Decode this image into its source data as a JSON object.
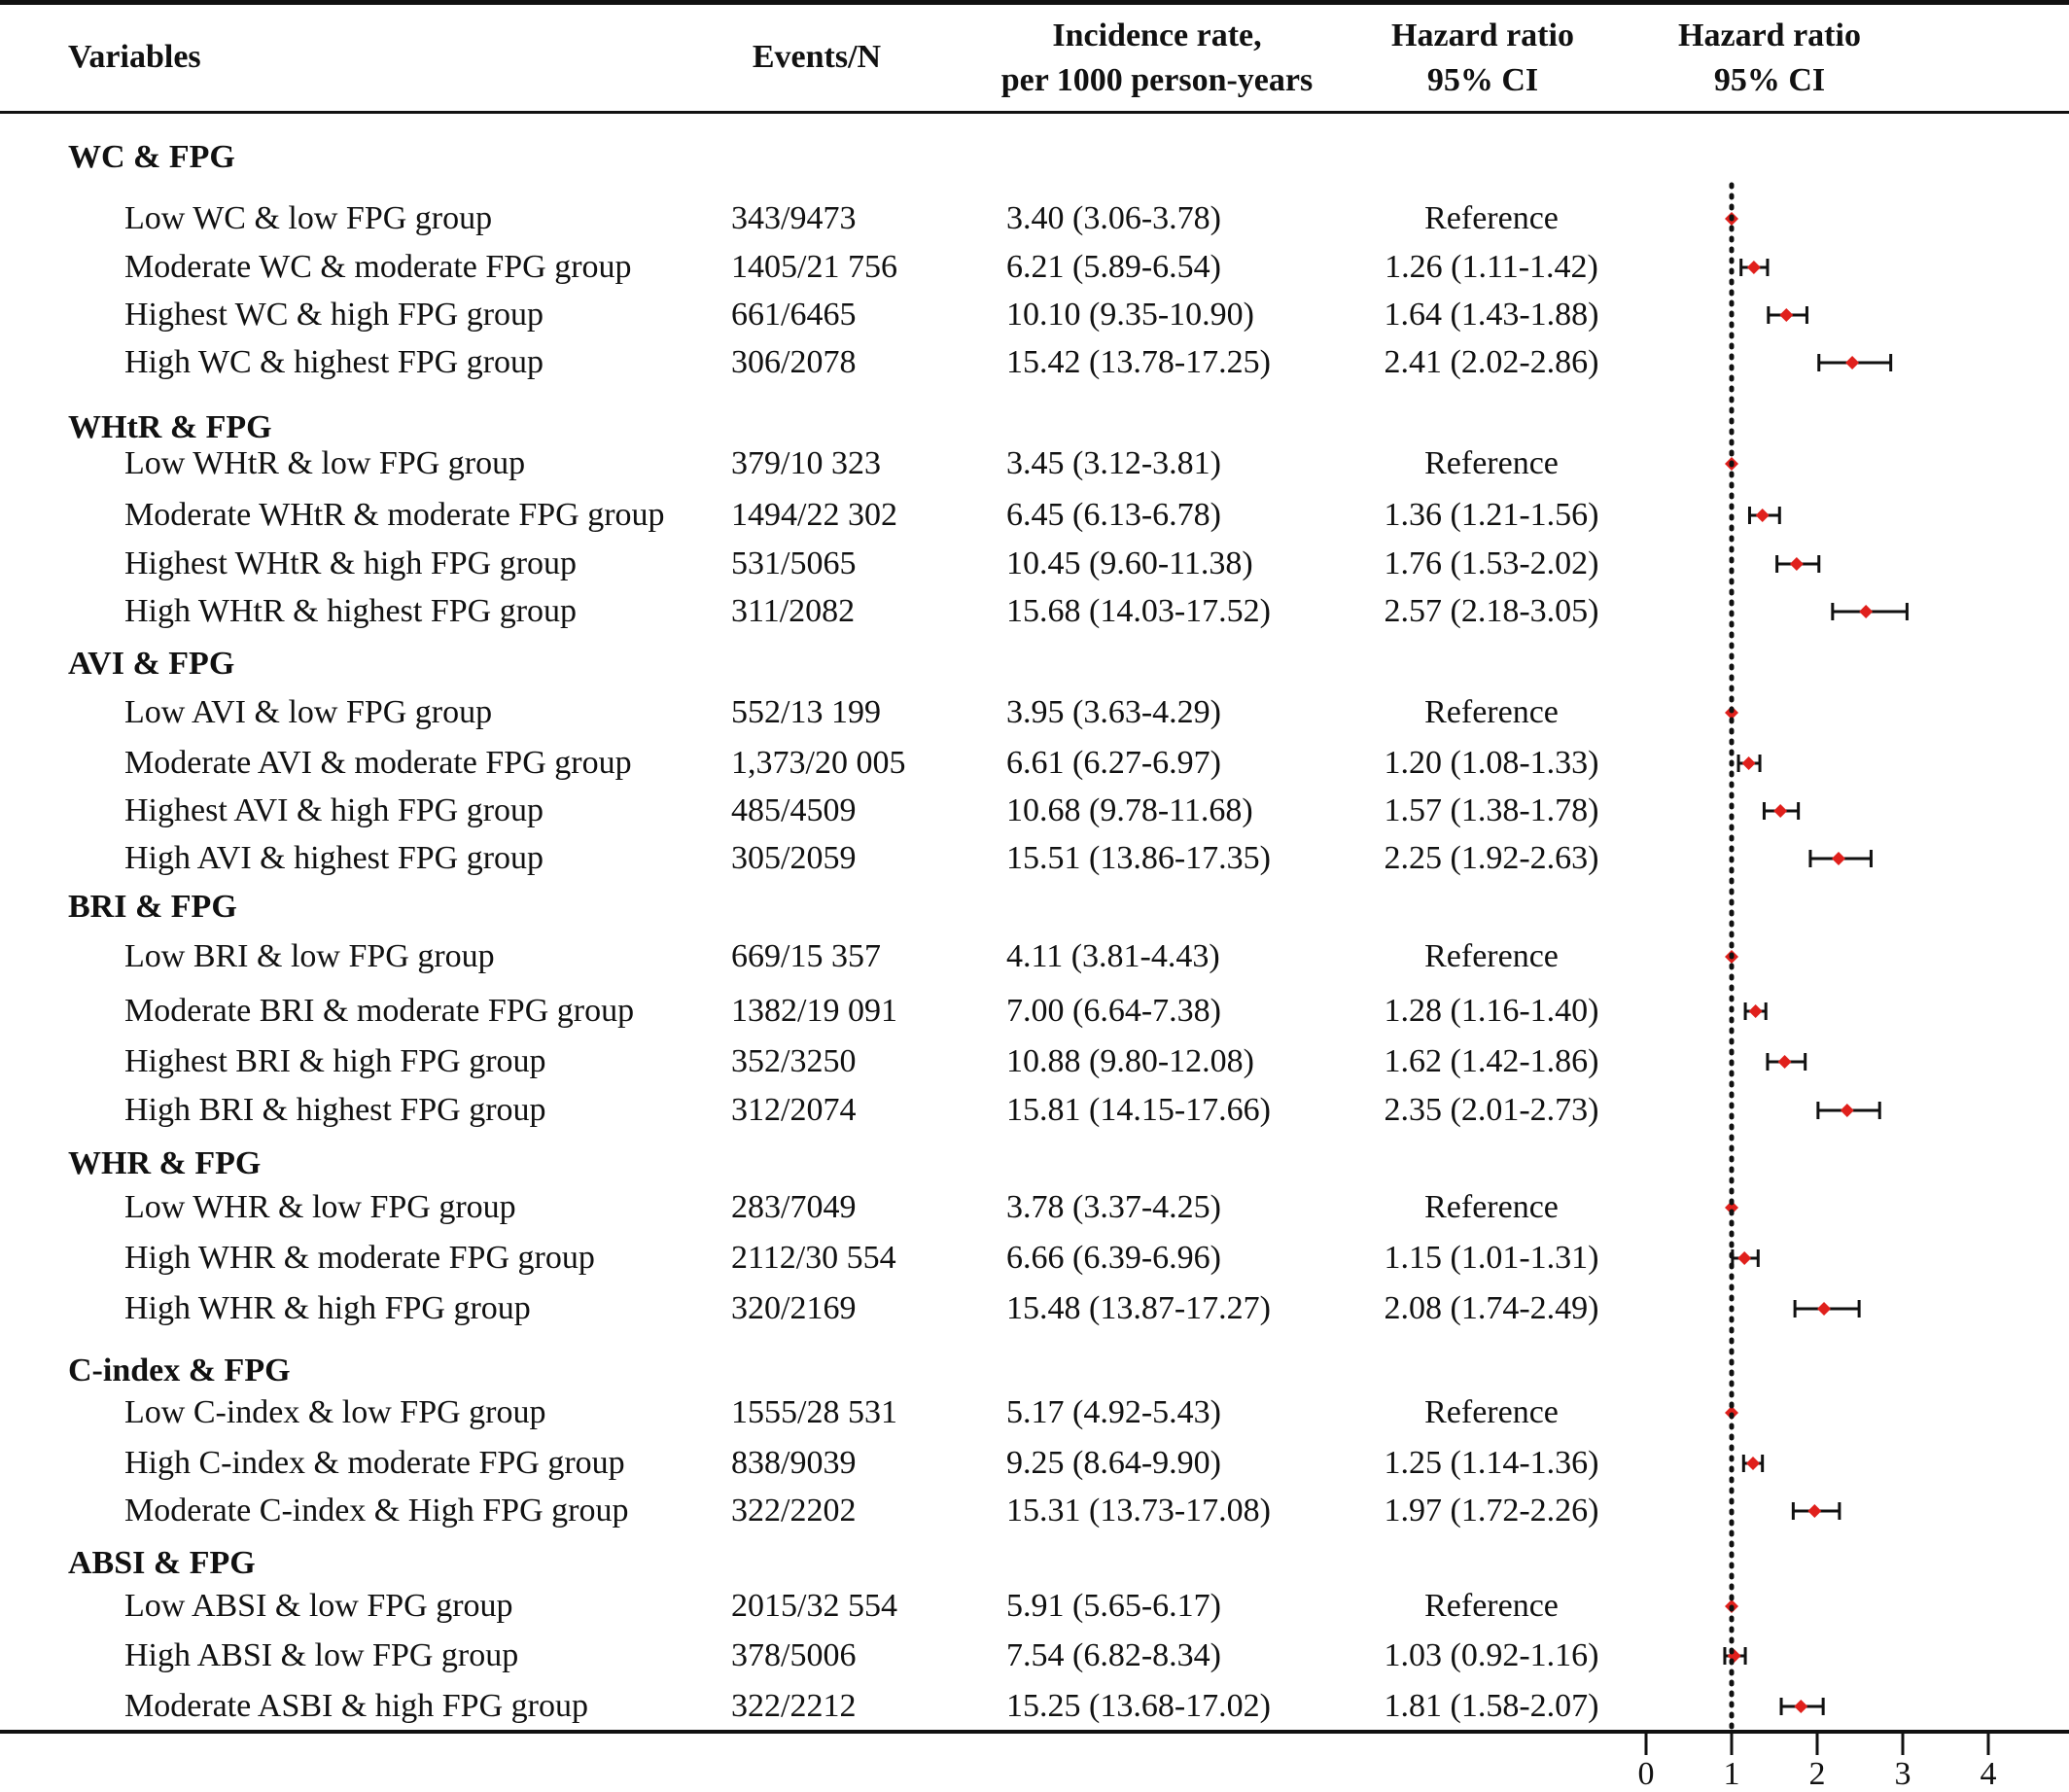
{
  "columns": {
    "variables": "Variables",
    "events": "Events/N",
    "incidence_l1": "Incidence rate,",
    "incidence_l2": "per 1000 person-years",
    "hr_l1": "Hazard ratio",
    "hr_l2": "95% CI",
    "plot_l1": "Hazard ratio",
    "plot_l2": "95% CI"
  },
  "chart_data": {
    "type": "forest",
    "xaxis": {
      "ticks": [
        0,
        1,
        2,
        3,
        4
      ],
      "range": [
        0,
        4
      ],
      "reference_line": 1
    },
    "marker_color": "#e0201c",
    "groups": [
      {
        "name": "WC & FPG",
        "rows": [
          {
            "label": "Low WC & low FPG group",
            "events": "343/9473",
            "incidence": "3.40 (3.06-3.78)",
            "hr_text": "Reference",
            "hr": 1.0,
            "lo": 1.0,
            "hi": 1.0
          },
          {
            "label": "Moderate WC & moderate FPG group",
            "events": "1405/21 756",
            "incidence": "6.21 (5.89-6.54)",
            "hr_text": "1.26 (1.11-1.42)",
            "hr": 1.26,
            "lo": 1.11,
            "hi": 1.42
          },
          {
            "label": "Highest WC & high FPG group",
            "events": "661/6465",
            "incidence": "10.10 (9.35-10.90)",
            "hr_text": "1.64 (1.43-1.88)",
            "hr": 1.64,
            "lo": 1.43,
            "hi": 1.88
          },
          {
            "label": "High WC & highest FPG group",
            "events": "306/2078",
            "incidence": "15.42 (13.78-17.25)",
            "hr_text": "2.41 (2.02-2.86)",
            "hr": 2.41,
            "lo": 2.02,
            "hi": 2.86
          }
        ]
      },
      {
        "name": "WHtR & FPG",
        "rows": [
          {
            "label": "Low WHtR & low FPG group",
            "events": "379/10 323",
            "incidence": "3.45 (3.12-3.81)",
            "hr_text": "Reference",
            "hr": 1.0,
            "lo": 1.0,
            "hi": 1.0
          },
          {
            "label": "Moderate WHtR & moderate FPG group",
            "events": "1494/22 302",
            "incidence": "6.45 (6.13-6.78)",
            "hr_text": "1.36 (1.21-1.56)",
            "hr": 1.36,
            "lo": 1.21,
            "hi": 1.56
          },
          {
            "label": "Highest WHtR & high FPG group",
            "events": "531/5065",
            "incidence": "10.45 (9.60-11.38)",
            "hr_text": "1.76 (1.53-2.02)",
            "hr": 1.76,
            "lo": 1.53,
            "hi": 2.02
          },
          {
            "label": "High WHtR & highest FPG group",
            "events": "311/2082",
            "incidence": "15.68 (14.03-17.52)",
            "hr_text": "2.57 (2.18-3.05)",
            "hr": 2.57,
            "lo": 2.18,
            "hi": 3.05
          }
        ]
      },
      {
        "name": "AVI & FPG",
        "rows": [
          {
            "label": "Low AVI & low FPG group",
            "events": "552/13 199",
            "incidence": "3.95 (3.63-4.29)",
            "hr_text": "Reference",
            "hr": 1.0,
            "lo": 1.0,
            "hi": 1.0
          },
          {
            "label": "Moderate AVI & moderate FPG group",
            "events": "1,373/20 005",
            "incidence": "6.61 (6.27-6.97)",
            "hr_text": "1.20 (1.08-1.33)",
            "hr": 1.2,
            "lo": 1.08,
            "hi": 1.33
          },
          {
            "label": "Highest AVI & high FPG group",
            "events": "485/4509",
            "incidence": "10.68 (9.78-11.68)",
            "hr_text": "1.57 (1.38-1.78)",
            "hr": 1.57,
            "lo": 1.38,
            "hi": 1.78
          },
          {
            "label": "High AVI & highest FPG group",
            "events": "305/2059",
            "incidence": "15.51 (13.86-17.35)",
            "hr_text": "2.25 (1.92-2.63)",
            "hr": 2.25,
            "lo": 1.92,
            "hi": 2.63
          }
        ]
      },
      {
        "name": "BRI & FPG",
        "rows": [
          {
            "label": "Low BRI & low FPG group",
            "events": "669/15 357",
            "incidence": "4.11 (3.81-4.43)",
            "hr_text": "Reference",
            "hr": 1.0,
            "lo": 1.0,
            "hi": 1.0
          },
          {
            "label": "Moderate BRI & moderate FPG group",
            "events": "1382/19 091",
            "incidence": "7.00 (6.64-7.38)",
            "hr_text": "1.28 (1.16-1.40)",
            "hr": 1.28,
            "lo": 1.16,
            "hi": 1.4
          },
          {
            "label": "Highest BRI & high FPG group",
            "events": "352/3250",
            "incidence": "10.88 (9.80-12.08)",
            "hr_text": "1.62 (1.42-1.86)",
            "hr": 1.62,
            "lo": 1.42,
            "hi": 1.86
          },
          {
            "label": "High BRI & highest FPG group",
            "events": "312/2074",
            "incidence": "15.81 (14.15-17.66)",
            "hr_text": "2.35 (2.01-2.73)",
            "hr": 2.35,
            "lo": 2.01,
            "hi": 2.73
          }
        ]
      },
      {
        "name": "WHR & FPG",
        "rows": [
          {
            "label": "Low WHR & low FPG group",
            "events": "283/7049",
            "incidence": "3.78 (3.37-4.25)",
            "hr_text": "Reference",
            "hr": 1.0,
            "lo": 1.0,
            "hi": 1.0
          },
          {
            "label": "High WHR & moderate FPG group",
            "events": "2112/30 554",
            "incidence": "6.66 (6.39-6.96)",
            "hr_text": "1.15 (1.01-1.31)",
            "hr": 1.15,
            "lo": 1.01,
            "hi": 1.31
          },
          {
            "label": "High WHR & high FPG group",
            "events": "320/2169",
            "incidence": "15.48 (13.87-17.27)",
            "hr_text": "2.08 (1.74-2.49)",
            "hr": 2.08,
            "lo": 1.74,
            "hi": 2.49
          }
        ]
      },
      {
        "name": "C-index & FPG",
        "rows": [
          {
            "label": "Low C-index & low FPG group",
            "events": "1555/28 531",
            "incidence": "5.17 (4.92-5.43)",
            "hr_text": "Reference",
            "hr": 1.0,
            "lo": 1.0,
            "hi": 1.0
          },
          {
            "label": "High C-index & moderate FPG group",
            "events": "838/9039",
            "incidence": "9.25 (8.64-9.90)",
            "hr_text": "1.25 (1.14-1.36)",
            "hr": 1.25,
            "lo": 1.14,
            "hi": 1.36
          },
          {
            "label": "Moderate C-index & High FPG group",
            "events": "322/2202",
            "incidence": "15.31 (13.73-17.08)",
            "hr_text": "1.97 (1.72-2.26)",
            "hr": 1.97,
            "lo": 1.72,
            "hi": 2.26
          }
        ]
      },
      {
        "name": "ABSI & FPG",
        "rows": [
          {
            "label": "Low ABSI & low FPG group",
            "events": "2015/32 554",
            "incidence": "5.91 (5.65-6.17)",
            "hr_text": "Reference",
            "hr": 1.0,
            "lo": 1.0,
            "hi": 1.0
          },
          {
            "label": "High ABSI & low FPG group",
            "events": "378/5006",
            "incidence": "7.54 (6.82-8.34)",
            "hr_text": "1.03 (0.92-1.16)",
            "hr": 1.03,
            "lo": 0.92,
            "hi": 1.16
          },
          {
            "label": "Moderate ASBI & high FPG group",
            "events": "322/2212",
            "incidence": "15.25 (13.68-17.02)",
            "hr_text": "1.81 (1.58-2.07)",
            "hr": 1.81,
            "lo": 1.58,
            "hi": 2.07
          }
        ]
      }
    ]
  }
}
